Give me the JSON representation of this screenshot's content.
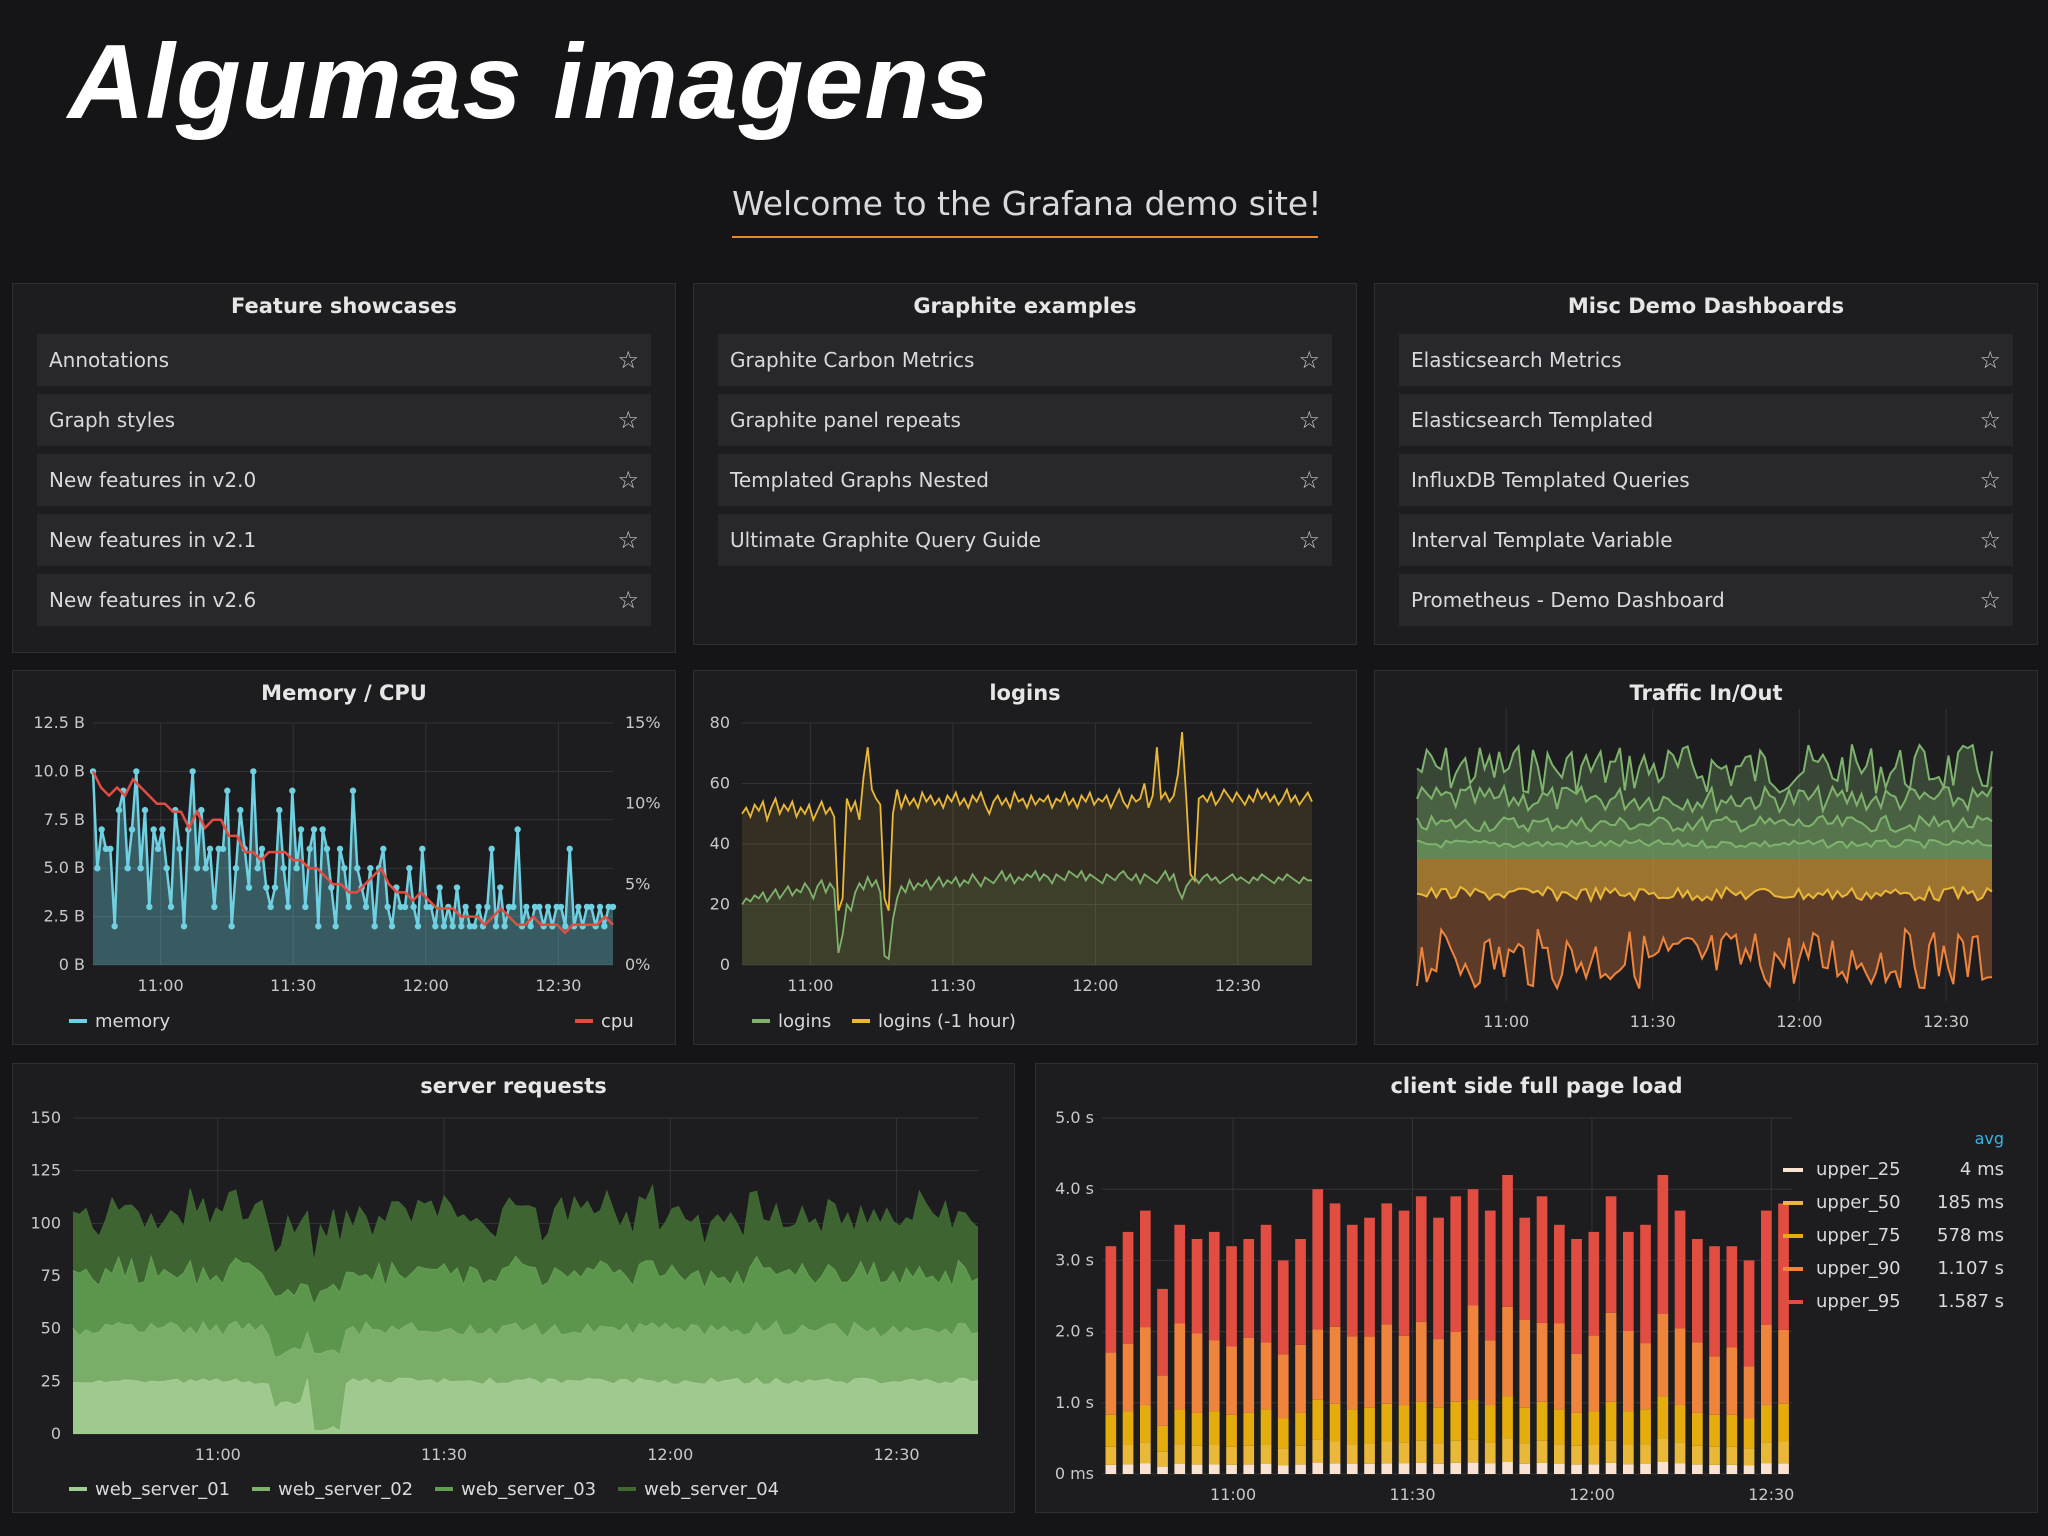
{
  "slide": {
    "title": "Algumas imagens"
  },
  "welcome": "Welcome to the Grafana demo site!",
  "lists": [
    {
      "title": "Feature showcases",
      "items": [
        "Annotations",
        "Graph styles",
        "New features in v2.0",
        "New features in v2.1",
        "New features in v2.6"
      ]
    },
    {
      "title": "Graphite examples",
      "items": [
        "Graphite Carbon Metrics",
        "Graphite panel repeats",
        "Templated Graphs Nested",
        "Ultimate Graphite Query Guide"
      ]
    },
    {
      "title": "Misc Demo Dashboards",
      "items": [
        "Elasticsearch Metrics",
        "Elasticsearch Templated",
        "InfluxDB Templated Queries",
        "Interval Template Variable",
        "Prometheus - Demo Dashboard"
      ]
    }
  ],
  "icons": {
    "star": "star-outline-icon"
  },
  "colors": {
    "accent": "#e3882b",
    "memory": "#6ed0e0",
    "cpu": "#e24d42",
    "green": "#7eb26d",
    "yellow": "#eab839"
  },
  "chart_data": [
    {
      "id": "memory_cpu",
      "type": "line",
      "title": "Memory / CPU",
      "x_ticks": [
        "11:00",
        "11:30",
        "12:00",
        "12:30"
      ],
      "y_ticks": [
        "0 B",
        "2.5 B",
        "5.0 B",
        "7.5 B",
        "10.0 B",
        "12.5 B"
      ],
      "y2_ticks": [
        "0%",
        "5%",
        "10%",
        "15%"
      ],
      "ylim": [
        0,
        12.5
      ],
      "y2lim": [
        0,
        15
      ],
      "series": [
        {
          "name": "memory",
          "axis": "left",
          "color": "#6ed0e0",
          "values": [
            10,
            5,
            7,
            6,
            6,
            2,
            8,
            9,
            5,
            7,
            10,
            5,
            8,
            3,
            7,
            6,
            7,
            5,
            3,
            8,
            6,
            2,
            7,
            10,
            5,
            8,
            5,
            6,
            3,
            6,
            6,
            9,
            2,
            5,
            8,
            6,
            4,
            10,
            5,
            6,
            4,
            3,
            4,
            8,
            5,
            3,
            9,
            5,
            7,
            3,
            6,
            7,
            2,
            7,
            6,
            4,
            2,
            6,
            5,
            3,
            9,
            5,
            4,
            3,
            5,
            2,
            5,
            6,
            3,
            2,
            4,
            3,
            3,
            5,
            3,
            2,
            6,
            3,
            3,
            2,
            4,
            2,
            3,
            2,
            4,
            2,
            3,
            2,
            2,
            3,
            2,
            3,
            6,
            2,
            4,
            2,
            3,
            3,
            7,
            2,
            3,
            2,
            3,
            3,
            2,
            3,
            2,
            3,
            3,
            2,
            6,
            2,
            3,
            2,
            3,
            3,
            2,
            3,
            2,
            3,
            3
          ]
        },
        {
          "name": "cpu",
          "axis": "right",
          "color": "#e24d42",
          "values": [
            12,
            11,
            10.5,
            11,
            10.5,
            11.5,
            11,
            10.5,
            10,
            10,
            9.5,
            9.5,
            8.5,
            9.5,
            8.5,
            9,
            9,
            8,
            8,
            7,
            7,
            6.5,
            7,
            7,
            7,
            6.5,
            6.5,
            6,
            6,
            5.5,
            5,
            5,
            4.5,
            4.5,
            5,
            5.5,
            6,
            5,
            4.5,
            4.5,
            4,
            4.5,
            4,
            3.5,
            3.5,
            3.5,
            3,
            3,
            3,
            2.5,
            3,
            3.5,
            3,
            2.5,
            2.5,
            3,
            2.5,
            2.5,
            2.5,
            2,
            2.5,
            2.5,
            2.5,
            2.5,
            3,
            2.5
          ]
        }
      ]
    },
    {
      "id": "logins",
      "type": "line",
      "title": "logins",
      "x_ticks": [
        "11:00",
        "11:30",
        "12:00",
        "12:30"
      ],
      "y_ticks": [
        "0",
        "20",
        "40",
        "60",
        "80"
      ],
      "ylim": [
        0,
        80
      ],
      "series": [
        {
          "name": "logins",
          "color": "#7eb26d",
          "values": [
            20,
            22,
            21,
            23,
            22,
            24,
            21,
            23,
            25,
            22,
            24,
            26,
            23,
            25,
            24,
            27,
            25,
            22,
            26,
            28,
            24,
            27,
            25,
            4,
            10,
            20,
            18,
            24,
            27,
            25,
            29,
            26,
            28,
            24,
            3,
            2,
            15,
            22,
            26,
            24,
            28,
            25,
            27,
            26,
            28,
            25,
            27,
            29,
            26,
            28,
            27,
            29,
            26,
            28,
            27,
            30,
            28,
            26,
            29,
            28,
            27,
            29,
            31,
            28,
            30,
            27,
            29,
            28,
            30,
            29,
            31,
            28,
            30,
            29,
            27,
            30,
            29,
            28,
            31,
            30,
            29,
            31,
            28,
            30,
            29,
            28,
            27,
            30,
            29,
            28,
            30,
            31,
            29,
            28,
            30,
            27,
            30,
            29,
            28,
            27,
            29,
            31,
            28,
            30,
            25,
            22,
            26,
            28,
            29,
            27,
            29,
            30,
            28,
            29,
            27,
            28,
            29,
            30,
            28,
            29,
            28,
            27,
            29,
            28,
            30,
            29,
            28,
            27,
            29,
            28,
            30,
            29,
            28,
            27,
            29,
            28,
            28
          ]
        },
        {
          "name": "logins (-1 hour)",
          "color": "#eab839",
          "values": [
            50,
            52,
            49,
            53,
            51,
            54,
            48,
            52,
            55,
            50,
            53,
            51,
            54,
            49,
            52,
            50,
            53,
            48,
            51,
            54,
            50,
            52,
            49,
            18,
            22,
            55,
            51,
            54,
            48,
            62,
            72,
            58,
            55,
            53,
            22,
            18,
            50,
            58,
            52,
            56,
            53,
            55,
            52,
            57,
            54,
            56,
            53,
            55,
            52,
            56,
            54,
            57,
            53,
            55,
            52,
            56,
            54,
            57,
            53,
            50,
            54,
            56,
            53,
            55,
            52,
            57,
            54,
            55,
            52,
            56,
            53,
            55,
            54,
            56,
            52,
            55,
            54,
            57,
            53,
            55,
            52,
            56,
            54,
            57,
            53,
            55,
            54,
            56,
            52,
            55,
            58,
            54,
            52,
            56,
            54,
            55,
            60,
            52,
            56,
            72,
            55,
            57,
            54,
            56,
            63,
            77,
            55,
            30,
            28,
            55,
            56,
            54,
            57,
            53,
            55,
            58,
            56,
            54,
            57,
            55,
            53,
            56,
            54,
            58,
            55,
            57,
            54,
            56,
            53,
            55,
            58,
            54,
            56,
            53,
            55,
            57,
            54
          ]
        }
      ]
    },
    {
      "id": "traffic",
      "type": "area",
      "title": "Traffic In/Out",
      "x_ticks": [
        "11:00",
        "11:30",
        "12:00",
        "12:30"
      ]
    },
    {
      "id": "server_requests",
      "type": "area",
      "title": "server requests",
      "x_ticks": [
        "11:00",
        "11:30",
        "12:00",
        "12:30"
      ],
      "y_ticks": [
        "0",
        "25",
        "50",
        "75",
        "100",
        "125",
        "150"
      ],
      "ylim": [
        0,
        150
      ],
      "series": [
        {
          "name": "web_server_01",
          "color": "#a3cc93"
        },
        {
          "name": "web_server_02",
          "color": "#7eb26d"
        },
        {
          "name": "web_server_03",
          "color": "#629e51"
        },
        {
          "name": "web_server_04",
          "color": "#3f6833"
        }
      ]
    },
    {
      "id": "page_load",
      "type": "bar",
      "title": "client side full page load",
      "x_ticks": [
        "11:00",
        "11:30",
        "12:00",
        "12:30"
      ],
      "y_ticks": [
        "0 ms",
        "1.0 s",
        "2.0 s",
        "3.0 s",
        "4.0 s",
        "5.0 s"
      ],
      "ylim": [
        0,
        5
      ],
      "legend_header": "avg",
      "series": [
        {
          "name": "upper_25",
          "avg": "4 ms",
          "color": "#f9e2d2"
        },
        {
          "name": "upper_50",
          "avg": "185 ms",
          "color": "#eab839"
        },
        {
          "name": "upper_75",
          "avg": "578 ms",
          "color": "#e5ac0e"
        },
        {
          "name": "upper_90",
          "avg": "1.107 s",
          "color": "#ef843c"
        },
        {
          "name": "upper_95",
          "avg": "1.587 s",
          "color": "#e24d42"
        }
      ],
      "totals": [
        3.2,
        3.4,
        3.7,
        2.6,
        3.5,
        3.3,
        3.4,
        3.2,
        3.3,
        3.5,
        3.0,
        3.3,
        4.0,
        3.8,
        3.5,
        3.6,
        3.8,
        3.7,
        3.9,
        3.6,
        3.9,
        4.0,
        3.7,
        4.2,
        3.6,
        3.9,
        3.5,
        3.3,
        3.4,
        3.9,
        3.4,
        3.5,
        4.2,
        3.7,
        3.3,
        3.2,
        3.2,
        3.0,
        3.7,
        3.8
      ]
    }
  ]
}
